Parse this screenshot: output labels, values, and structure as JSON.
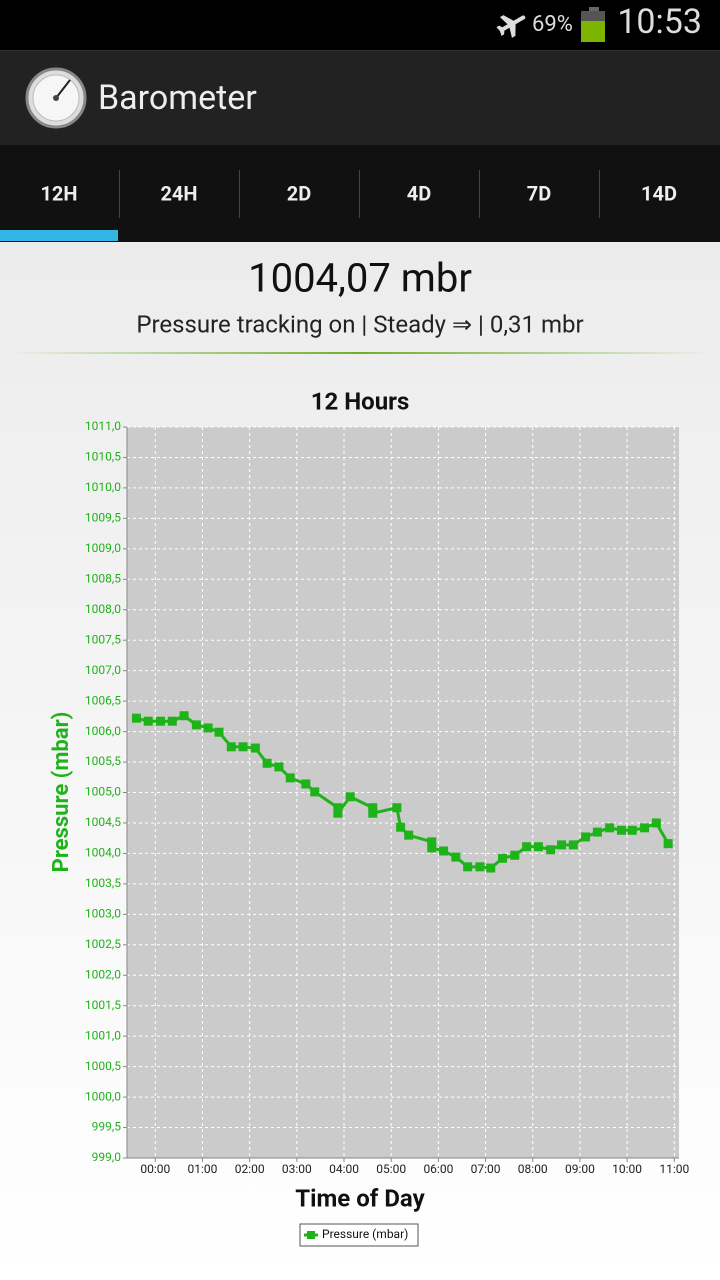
{
  "status_bar": {
    "battery": "69%",
    "time": "10:53"
  },
  "app_bar": {
    "title": "Barometer"
  },
  "tabs": {
    "items": [
      "12H",
      "24H",
      "2D",
      "4D",
      "7D",
      "14D"
    ],
    "active": 0
  },
  "reading": {
    "value": "1004,07 mbr",
    "status": "Pressure tracking on | Steady ⇒ | 0,31 mbr"
  },
  "chart_data": {
    "type": "line",
    "title": "12 Hours",
    "x_label": "Time of Day",
    "y_label": "Pressure (mbar)",
    "grid": true,
    "legend": "bottom",
    "xlim": [
      -0.6,
      11.1
    ],
    "ylim": [
      999,
      1011
    ],
    "xticks": [
      {
        "value": 0,
        "label": "00:00"
      },
      {
        "value": 1,
        "label": "01:00"
      },
      {
        "value": 2,
        "label": "02:00"
      },
      {
        "value": 3,
        "label": "03:00"
      },
      {
        "value": 4,
        "label": "04:00"
      },
      {
        "value": 5,
        "label": "05:00"
      },
      {
        "value": 6,
        "label": "06:00"
      },
      {
        "value": 7,
        "label": "07:00"
      },
      {
        "value": 8,
        "label": "08:00"
      },
      {
        "value": 9,
        "label": "09:00"
      },
      {
        "value": 10,
        "label": "10:00"
      },
      {
        "value": 11,
        "label": "11:00"
      }
    ],
    "yticks": [
      {
        "value": 999,
        "label": "999,0"
      },
      {
        "value": 999.5,
        "label": "999,5"
      },
      {
        "value": 1000,
        "label": "1000,0"
      },
      {
        "value": 1000.5,
        "label": "1000,5"
      },
      {
        "value": 1001,
        "label": "1001,0"
      },
      {
        "value": 1001.5,
        "label": "1001,5"
      },
      {
        "value": 1002,
        "label": "1002,0"
      },
      {
        "value": 1002.5,
        "label": "1002,5"
      },
      {
        "value": 1003,
        "label": "1003,0"
      },
      {
        "value": 1003.5,
        "label": "1003,5"
      },
      {
        "value": 1004,
        "label": "1004,0"
      },
      {
        "value": 1004.5,
        "label": "1004,5"
      },
      {
        "value": 1005,
        "label": "1005,0"
      },
      {
        "value": 1005.5,
        "label": "1005,5"
      },
      {
        "value": 1006,
        "label": "1006,0"
      },
      {
        "value": 1006.5,
        "label": "1006,5"
      },
      {
        "value": 1007,
        "label": "1007,0"
      },
      {
        "value": 1007.5,
        "label": "1007,5"
      },
      {
        "value": 1008,
        "label": "1008,0"
      },
      {
        "value": 1008.5,
        "label": "1008,5"
      },
      {
        "value": 1009,
        "label": "1009,0"
      },
      {
        "value": 1009.5,
        "label": "1009,5"
      },
      {
        "value": 1010,
        "label": "1010,0"
      },
      {
        "value": 1010.5,
        "label": "1010,5"
      },
      {
        "value": 1011,
        "label": "1011,0"
      }
    ],
    "x": [
      -0.4,
      -0.15,
      0.11,
      0.36,
      0.61,
      0.87,
      1.12,
      1.35,
      1.61,
      1.86,
      2.12,
      2.37,
      2.62,
      2.86,
      3.19,
      3.38,
      3.87,
      3.87,
      4.13,
      4.61,
      4.61,
      5.12,
      5.2,
      5.37,
      5.86,
      5.86,
      6.11,
      6.37,
      6.62,
      6.88,
      7.11,
      7.36,
      7.62,
      7.87,
      8.12,
      8.38,
      8.61,
      8.86,
      9.12,
      9.37,
      9.63,
      9.88,
      10.11,
      10.37,
      10.62,
      10.87
    ],
    "series": [
      {
        "name": "Pressure (mbar)",
        "color": "#1fb31a",
        "values": [
          1006.22,
          1006.17,
          1006.17,
          1006.17,
          1006.26,
          1006.11,
          1006.06,
          1005.99,
          1005.75,
          1005.75,
          1005.73,
          1005.48,
          1005.42,
          1005.24,
          1005.14,
          1005.01,
          1004.75,
          1004.66,
          1004.93,
          1004.75,
          1004.66,
          1004.75,
          1004.43,
          1004.3,
          1004.19,
          1004.09,
          1004.04,
          1003.94,
          1003.78,
          1003.78,
          1003.76,
          1003.92,
          1003.97,
          1004.11,
          1004.11,
          1004.06,
          1004.14,
          1004.14,
          1004.27,
          1004.35,
          1004.42,
          1004.38,
          1004.38,
          1004.42,
          1004.5,
          1004.16
        ]
      }
    ]
  }
}
